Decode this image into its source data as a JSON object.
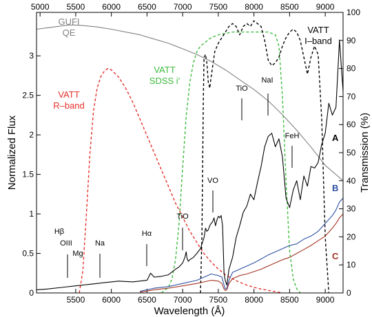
{
  "chart_data": {
    "type": "line",
    "xlabel": "Wavelength (Å)",
    "ylabel_left": "Normalized Flux",
    "ylabel_right": "Transmission (%)",
    "xlim": [
      4950,
      9250
    ],
    "ylim_left": [
      0,
      3.55
    ],
    "ylim_right": [
      0,
      100
    ],
    "bottom_x_ticks": [
      5500,
      6000,
      6500,
      7000,
      7500,
      8000,
      8500,
      9000
    ],
    "top_x_ticks": [
      5000,
      5500,
      6000,
      6500,
      7000,
      7500,
      8000,
      8500,
      9000
    ],
    "left_y_ticks": [
      0,
      0.5,
      1,
      1.5,
      2,
      2.5,
      3
    ],
    "left_y_tick_labels": [
      "0",
      "0.5",
      "1",
      "1.5",
      "2",
      "2.5",
      "3"
    ],
    "right_y_ticks": [
      0,
      10,
      20,
      30,
      40,
      50,
      60,
      70,
      80,
      90,
      100
    ],
    "series": [
      {
        "color": "#e5312b",
        "style": "dashed",
        "axis": "right",
        "x": [
          5550,
          5600,
          5650,
          5700,
          5750,
          5800,
          5850,
          5900,
          5950,
          6000,
          6100,
          6200,
          6300,
          6400,
          6500,
          6600,
          6700,
          6800,
          6900,
          7000,
          7100,
          7200,
          7300,
          7400,
          7500,
          7600,
          7700,
          7800,
          7900,
          8000,
          8100,
          8200,
          8400
        ],
        "y": [
          0,
          8,
          28,
          50,
          65,
          73,
          77,
          79,
          80,
          79.5,
          77,
          73,
          68,
          62,
          56,
          50,
          44,
          38,
          32,
          27,
          22,
          18,
          14,
          11,
          8.5,
          6.5,
          5,
          3.8,
          2.8,
          2,
          1.4,
          0.9,
          0
        ]
      },
      {
        "color": "#3dba3d",
        "style": "dashed",
        "axis": "right",
        "x": [
          6700,
          6800,
          6850,
          6900,
          6950,
          7000,
          7050,
          7100,
          7150,
          7200,
          7250,
          7300,
          7350,
          7400,
          7500,
          7600,
          7700,
          7800,
          7900,
          8000,
          8100,
          8200,
          8300,
          8350,
          8400,
          8450,
          8500,
          8550,
          8600,
          8650
        ],
        "y": [
          0,
          2,
          5,
          12,
          25,
          45,
          63,
          75,
          82,
          86,
          88,
          89,
          90,
          91,
          92,
          92.5,
          93,
          93,
          93,
          93,
          93,
          93,
          92,
          88,
          70,
          40,
          15,
          5,
          1.5,
          0
        ]
      },
      {
        "color": "#000000",
        "style": "dashed",
        "axis": "right",
        "x": [
          7250,
          7270,
          7290,
          7300,
          7320,
          7340,
          7360,
          7380,
          7400,
          7450,
          7500,
          7550,
          7600,
          7650,
          7700,
          7750,
          7800,
          7850,
          7900,
          7950,
          8000,
          8050,
          8100,
          8150,
          8200,
          8250,
          8300,
          8350,
          8400,
          8450,
          8500,
          8550,
          8600,
          8650,
          8700,
          8750,
          8800,
          8850,
          8900,
          8950,
          9000,
          9050
        ],
        "y": [
          0,
          20,
          70,
          84,
          85,
          82,
          75,
          73,
          77,
          86,
          89,
          91,
          93,
          95,
          96,
          95,
          92,
          95,
          96,
          95,
          97,
          96,
          95,
          90,
          83,
          81,
          82,
          84,
          88,
          91,
          93,
          94,
          93,
          90,
          84,
          78,
          84,
          88,
          85,
          62,
          20,
          0
        ]
      },
      {
        "color": "#808080",
        "style": "solid",
        "axis": "right",
        "x": [
          4950,
          5100,
          5250,
          5400,
          5500,
          5600,
          5800,
          6000,
          6200,
          6400,
          6600,
          6800,
          7000,
          7200,
          7400,
          7600,
          7800,
          8000,
          8200,
          8400,
          8600,
          8800,
          9000,
          9250
        ],
        "y": [
          94,
          94.5,
          95,
          95.5,
          95.5,
          95.3,
          94.8,
          94,
          93,
          92,
          90.5,
          89,
          87,
          85,
          82.5,
          79.5,
          76,
          72.5,
          68.5,
          63.5,
          58,
          52,
          45.5,
          40
        ]
      },
      {
        "name": "A",
        "color": "#000000",
        "style": "solid",
        "axis": "left",
        "x": [
          4950,
          5100,
          5300,
          5500,
          5700,
          5900,
          6100,
          6300,
          6500,
          6550,
          6600,
          6700,
          6800,
          6900,
          6950,
          7000,
          7030,
          7050,
          7060,
          7080,
          7100,
          7150,
          7200,
          7250,
          7300,
          7320,
          7340,
          7360,
          7380,
          7400,
          7420,
          7440,
          7460,
          7480,
          7500,
          7520,
          7540,
          7560,
          7580,
          7600,
          7620,
          7650,
          7700,
          7750,
          7800,
          7850,
          7900,
          7950,
          8000,
          8050,
          8100,
          8150,
          8200,
          8250,
          8300,
          8350,
          8400,
          8450,
          8500,
          8550,
          8600,
          8650,
          8700,
          8750,
          8800,
          8850,
          8900,
          8950,
          9000,
          9050,
          9100,
          9150,
          9200,
          9250
        ],
        "y": [
          0.04,
          0.05,
          0.07,
          0.09,
          0.11,
          0.13,
          0.15,
          0.14,
          0.16,
          0.25,
          0.2,
          0.21,
          0.23,
          0.3,
          0.33,
          0.38,
          0.45,
          0.52,
          0.44,
          0.4,
          0.42,
          0.45,
          0.5,
          0.56,
          0.7,
          0.82,
          0.78,
          0.8,
          0.85,
          0.88,
          0.9,
          0.95,
          0.85,
          0.92,
          0.97,
          0.95,
          0.98,
          0.85,
          0.25,
          0.15,
          0.1,
          0.3,
          0.45,
          0.7,
          0.85,
          1.02,
          1.1,
          1.25,
          1.18,
          1.4,
          1.6,
          1.85,
          1.98,
          2.02,
          1.85,
          1.95,
          1.72,
          1.2,
          1.08,
          1.3,
          1.42,
          1.18,
          1.48,
          1.35,
          1.6,
          1.58,
          1.65,
          1.88,
          2.02,
          2.4,
          2.25,
          2.35,
          3.2,
          2.55
        ]
      },
      {
        "name": "B",
        "color": "#2c4fa3",
        "style": "solid",
        "axis": "left",
        "x": [
          6400,
          6600,
          6800,
          7000,
          7200,
          7300,
          7350,
          7400,
          7450,
          7500,
          7550,
          7580,
          7600,
          7620,
          7650,
          7700,
          7800,
          7900,
          8000,
          8100,
          8200,
          8300,
          8400,
          8500,
          8600,
          8700,
          8800,
          8900,
          9000,
          9100,
          9150,
          9200,
          9250
        ],
        "y": [
          0.02,
          0.06,
          0.08,
          0.12,
          0.16,
          0.2,
          0.22,
          0.24,
          0.23,
          0.22,
          0.2,
          0.1,
          0.05,
          0.06,
          0.16,
          0.26,
          0.3,
          0.34,
          0.38,
          0.43,
          0.48,
          0.52,
          0.56,
          0.6,
          0.62,
          0.68,
          0.72,
          0.78,
          0.88,
          0.98,
          1.05,
          1.15,
          1.2
        ]
      },
      {
        "name": "C",
        "color": "#a2321f",
        "style": "solid",
        "axis": "left",
        "x": [
          6400,
          6600,
          6800,
          7000,
          7200,
          7300,
          7400,
          7500,
          7550,
          7580,
          7600,
          7620,
          7650,
          7700,
          7800,
          7900,
          8000,
          8100,
          8200,
          8300,
          8400,
          8500,
          8600,
          8700,
          8800,
          8900,
          9000,
          9100,
          9150,
          9200,
          9250
        ],
        "y": [
          0.01,
          0.04,
          0.06,
          0.09,
          0.12,
          0.14,
          0.16,
          0.15,
          0.12,
          0.05,
          0.03,
          0.04,
          0.12,
          0.18,
          0.22,
          0.24,
          0.27,
          0.3,
          0.34,
          0.38,
          0.42,
          0.45,
          0.5,
          0.55,
          0.6,
          0.66,
          0.72,
          0.82,
          0.88,
          0.95,
          1.0
        ]
      }
    ]
  },
  "labels": {
    "gufi_line1": "GUFI",
    "gufi_line2": "QE",
    "iband_line1": "VATT",
    "iband_line2": "I–band",
    "sdss_line1": "VATT",
    "sdss_line2": "SDSS i'",
    "rband_line1": "VATT",
    "rband_line2": "R–band",
    "curve_a": "A",
    "curve_b": "B",
    "curve_c": "C",
    "hbeta": "Hβ",
    "oiii": "OIII",
    "mg": "Mg",
    "na": "Na",
    "halpha": "Hα",
    "tio_1": "TiO",
    "vo": "VO",
    "tio_2": "TiO",
    "nai": "NaI",
    "feh": "FeH"
  }
}
